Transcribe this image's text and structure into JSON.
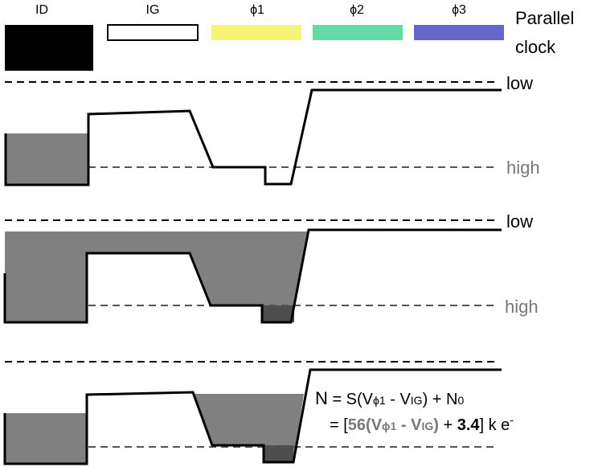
{
  "legend": {
    "id": "ID",
    "ig": "IG",
    "phi1": "ϕ1",
    "phi2": "ϕ2",
    "phi3": "ϕ3",
    "parallel": "Parallel",
    "clock": "clock"
  },
  "colors": {
    "id_fill": "#000000",
    "ig_fill": "#ffffff",
    "phi1": "#f5f57a",
    "phi2": "#63dba6",
    "phi3": "#6666cc",
    "charge": "#808080",
    "charge_dark": "#4d4d4d",
    "level_grey": "#777777"
  },
  "panels": {
    "p1": {
      "low": "low",
      "high": "high"
    },
    "p2": {
      "low": "low",
      "high": "high"
    }
  },
  "equation": {
    "n": "N",
    "eq": " = S(V",
    "phi": "ϕ1",
    "minus": " - V",
    "ig": "IG",
    "plus": ") + N",
    "zero": "0",
    "eq2": "= [",
    "coef": "56",
    "open": "(V",
    "phi2": "ϕ1",
    "minus2": " - V",
    "ig2": "IG",
    "close": ")",
    "plus2": " + ",
    "offset": "3.4",
    "units": "] k e",
    "minus_sup": "-"
  }
}
